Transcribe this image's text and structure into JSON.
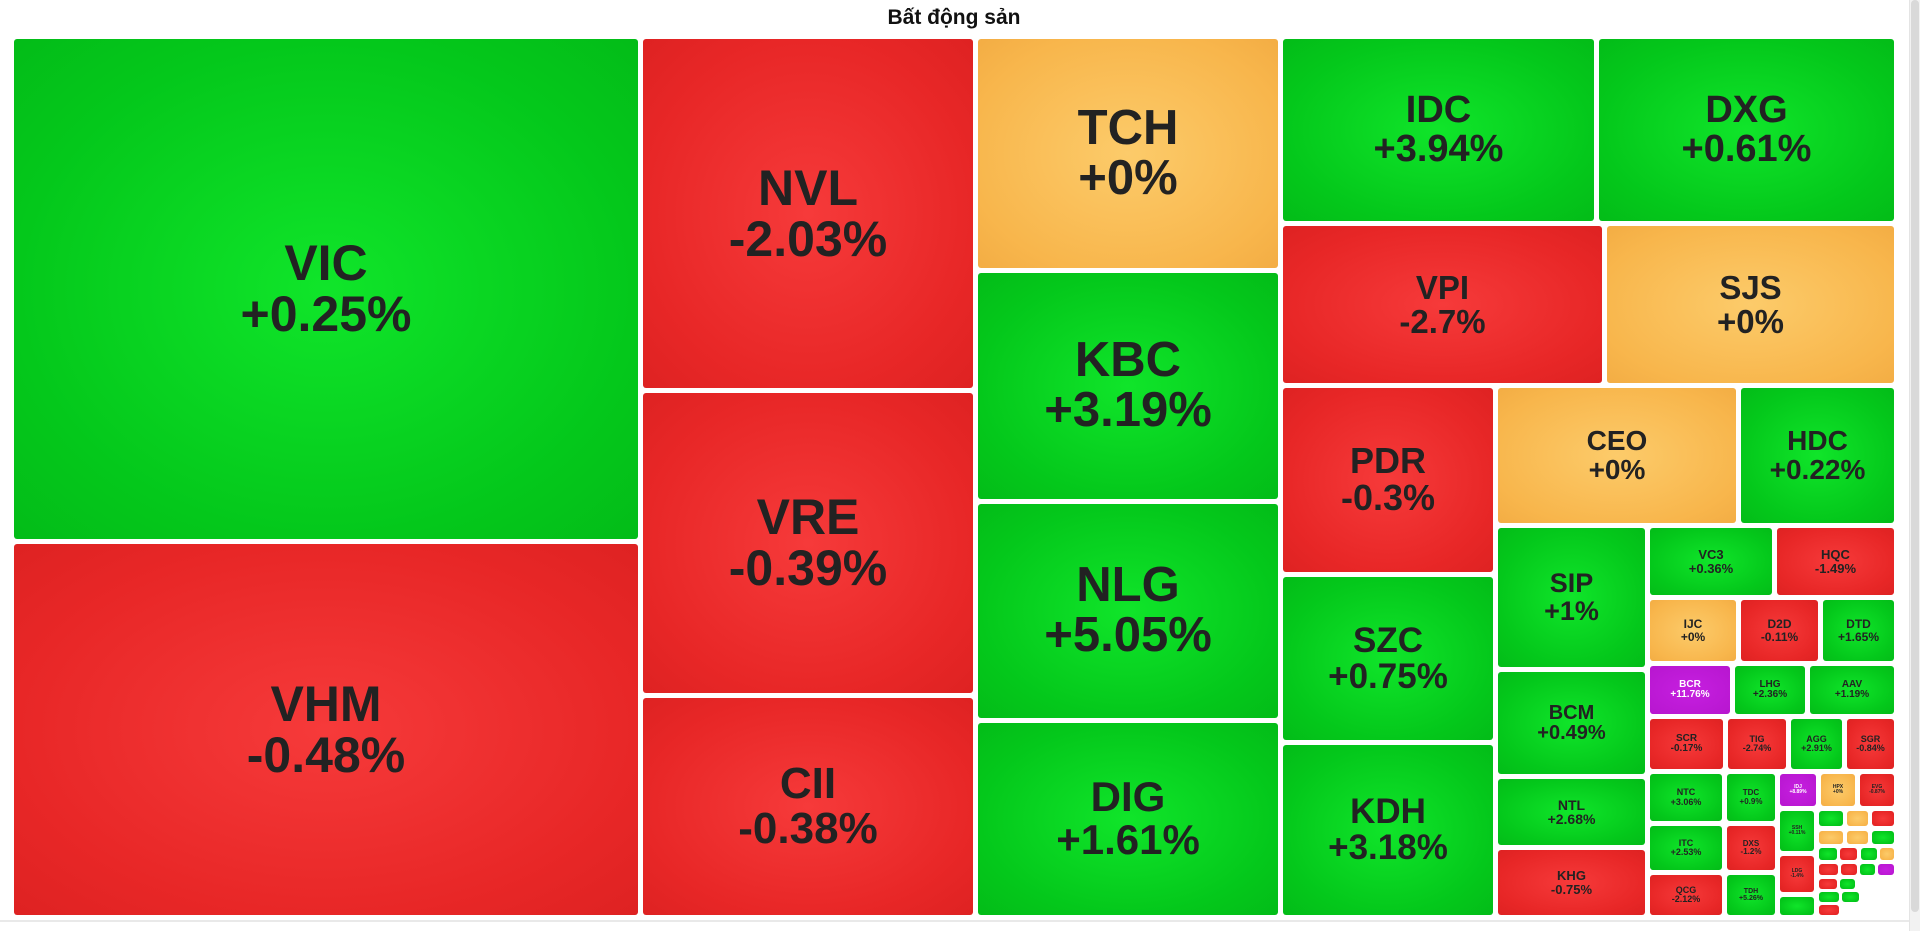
{
  "chart_data": {
    "type": "treemap",
    "title": "Bất động sản",
    "colors": {
      "up": "#04c81b",
      "down": "#e82727",
      "reference": "#f8b64c",
      "ceiling": "#b716cf"
    },
    "tiles": [
      {
        "code": "VIC",
        "change": "+0.25%",
        "status": "up"
      },
      {
        "code": "VHM",
        "change": "-0.48%",
        "status": "down"
      },
      {
        "code": "NVL",
        "change": "-2.03%",
        "status": "down"
      },
      {
        "code": "VRE",
        "change": "-0.39%",
        "status": "down"
      },
      {
        "code": "CII",
        "change": "-0.38%",
        "status": "down"
      },
      {
        "code": "TCH",
        "change": "+0%",
        "status": "ref"
      },
      {
        "code": "KBC",
        "change": "+3.19%",
        "status": "up"
      },
      {
        "code": "NLG",
        "change": "+5.05%",
        "status": "up"
      },
      {
        "code": "DIG",
        "change": "+1.61%",
        "status": "up"
      },
      {
        "code": "IDC",
        "change": "+3.94%",
        "status": "up"
      },
      {
        "code": "DXG",
        "change": "+0.61%",
        "status": "up"
      },
      {
        "code": "VPI",
        "change": "-2.7%",
        "status": "down"
      },
      {
        "code": "SJS",
        "change": "+0%",
        "status": "ref"
      },
      {
        "code": "PDR",
        "change": "-0.3%",
        "status": "down"
      },
      {
        "code": "CEO",
        "change": "+0%",
        "status": "ref"
      },
      {
        "code": "HDC",
        "change": "+0.22%",
        "status": "up"
      },
      {
        "code": "SZC",
        "change": "+0.75%",
        "status": "up"
      },
      {
        "code": "KDH",
        "change": "+3.18%",
        "status": "up"
      },
      {
        "code": "SIP",
        "change": "+1%",
        "status": "up"
      },
      {
        "code": "BCM",
        "change": "+0.49%",
        "status": "up"
      },
      {
        "code": "NTL",
        "change": "+2.68%",
        "status": "up"
      },
      {
        "code": "KHG",
        "change": "-0.75%",
        "status": "down"
      },
      {
        "code": "VC3",
        "change": "+0.36%",
        "status": "up"
      },
      {
        "code": "HQC",
        "change": "-1.49%",
        "status": "down"
      },
      {
        "code": "IJC",
        "change": "+0%",
        "status": "ref"
      },
      {
        "code": "D2D",
        "change": "-0.11%",
        "status": "down"
      },
      {
        "code": "DTD",
        "change": "+1.65%",
        "status": "up"
      },
      {
        "code": "BCR",
        "change": "+11.76%",
        "status": "ceil"
      },
      {
        "code": "LHG",
        "change": "+2.36%",
        "status": "up"
      },
      {
        "code": "AAV",
        "change": "+1.19%",
        "status": "up"
      },
      {
        "code": "SCR",
        "change": "-0.17%",
        "status": "down"
      },
      {
        "code": "TIG",
        "change": "-2.74%",
        "status": "down"
      },
      {
        "code": "AGG",
        "change": "+2.91%",
        "status": "up"
      },
      {
        "code": "SGR",
        "change": "-0.84%",
        "status": "down"
      },
      {
        "code": "NTC",
        "change": "+3.06%",
        "status": "up"
      },
      {
        "code": "TDC",
        "change": "+0.9%",
        "status": "up"
      },
      {
        "code": "IDJ",
        "change": "+8.89%",
        "status": "ceil"
      },
      {
        "code": "HPX",
        "change": "+0%",
        "status": "ref"
      },
      {
        "code": "EVG",
        "change": "-0.87%",
        "status": "down"
      },
      {
        "code": "ITC",
        "change": "+2.53%",
        "status": "up"
      },
      {
        "code": "DXS",
        "change": "-1.2%",
        "status": "down"
      },
      {
        "code": "SSH",
        "change": "+0.11%",
        "status": "up"
      },
      {
        "code": "LDG",
        "change": "-1.4%",
        "status": "down"
      },
      {
        "code": "QCG",
        "change": "-2.12%",
        "status": "down"
      },
      {
        "code": "TDH",
        "change": "+5.26%",
        "status": "up"
      },
      {
        "code": "",
        "change": "",
        "status": "up"
      },
      {
        "code": "",
        "change": "",
        "status": "ref"
      },
      {
        "code": "",
        "change": "",
        "status": "down"
      },
      {
        "code": "",
        "change": "",
        "status": "ref"
      },
      {
        "code": "",
        "change": "",
        "status": "ref"
      },
      {
        "code": "",
        "change": "",
        "status": "up"
      },
      {
        "code": "",
        "change": "",
        "status": "up"
      },
      {
        "code": "",
        "change": "",
        "status": "down"
      },
      {
        "code": "",
        "change": "",
        "status": "up"
      },
      {
        "code": "",
        "change": "",
        "status": "ref"
      },
      {
        "code": "",
        "change": "",
        "status": "down"
      },
      {
        "code": "",
        "change": "",
        "status": "down"
      },
      {
        "code": "",
        "change": "",
        "status": "up"
      },
      {
        "code": "",
        "change": "",
        "status": "ceil"
      },
      {
        "code": "",
        "change": "",
        "status": "up"
      },
      {
        "code": "",
        "change": "",
        "status": "down"
      },
      {
        "code": "",
        "change": "",
        "status": "up"
      },
      {
        "code": "",
        "change": "",
        "status": "up"
      },
      {
        "code": "",
        "change": "",
        "status": "up"
      },
      {
        "code": "",
        "change": "",
        "status": "down"
      }
    ]
  }
}
